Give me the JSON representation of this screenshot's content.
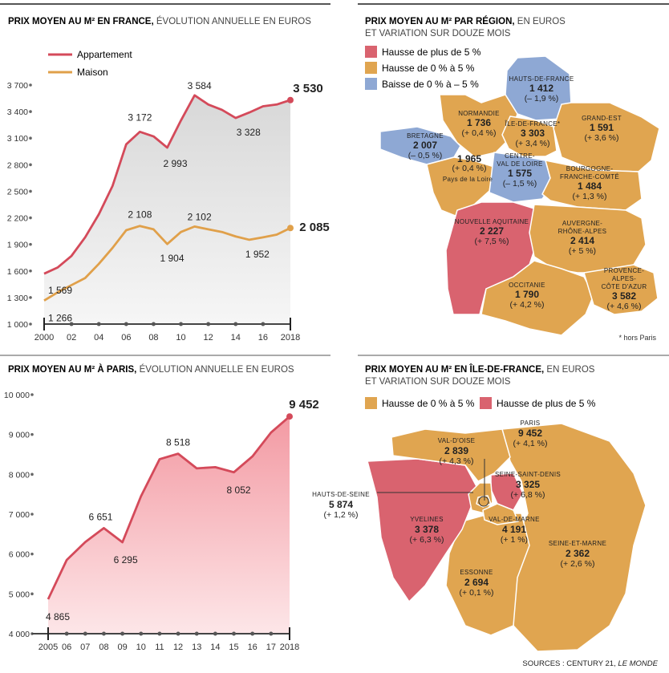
{
  "colors": {
    "appartement": "#d44a5a",
    "maison": "#e0a04a",
    "hausse_plus_5": "#d9636f",
    "hausse_0_5": "#e0a550",
    "baisse_0_5": "#8ea8d4",
    "border_map": "#ffffff",
    "axis": "#444444",
    "area_fill": "#e8e8e8",
    "paris_area": "#f4a0a8"
  },
  "chart_data": [
    {
      "type": "line",
      "id": "france",
      "title_bold": "PRIX MOYEN AU M² EN FRANCE,",
      "title_rest": " ÉVOLUTION ANNUELLE EN EUROS",
      "x": [
        2000,
        2001,
        2002,
        2003,
        2004,
        2005,
        2006,
        2007,
        2008,
        2009,
        2010,
        2011,
        2012,
        2013,
        2014,
        2015,
        2016,
        2017,
        2018
      ],
      "xticks": [
        "2000",
        "02",
        "04",
        "06",
        "08",
        "10",
        "12",
        "14",
        "16",
        "2018"
      ],
      "xtick_values": [
        2000,
        2002,
        2004,
        2006,
        2008,
        2010,
        2012,
        2014,
        2016,
        2018
      ],
      "yticks": [
        "1 000",
        "1 300",
        "1 600",
        "1 900",
        "2 200",
        "2 500",
        "2 800",
        "3 100",
        "3 400",
        "3 700"
      ],
      "ytick_values": [
        1000,
        1300,
        1600,
        1900,
        2200,
        2500,
        2800,
        3100,
        3400,
        3700
      ],
      "ylim": [
        1000,
        3700
      ],
      "series": [
        {
          "name": "Appartement",
          "key": "appartement",
          "values": [
            1569,
            1640,
            1770,
            1980,
            2240,
            2560,
            3030,
            3172,
            3120,
            2993,
            3300,
            3584,
            3480,
            3420,
            3328,
            3390,
            3460,
            3480,
            3530
          ]
        },
        {
          "name": "Maison",
          "key": "maison",
          "values": [
            1266,
            1360,
            1440,
            1520,
            1680,
            1860,
            2060,
            2108,
            2070,
            1904,
            2040,
            2102,
            2070,
            2040,
            1990,
            1952,
            1980,
            2010,
            2085
          ]
        }
      ],
      "labels": [
        {
          "series": 0,
          "index": 0,
          "text": "1 569"
        },
        {
          "series": 0,
          "index": 7,
          "text": "3 172"
        },
        {
          "series": 0,
          "index": 9,
          "text": "2 993"
        },
        {
          "series": 0,
          "index": 11,
          "text": "3 584"
        },
        {
          "series": 0,
          "index": 14,
          "text": "3 328"
        },
        {
          "series": 0,
          "index": 18,
          "text": "3 530",
          "bold": true
        },
        {
          "series": 1,
          "index": 0,
          "text": "1 266"
        },
        {
          "series": 1,
          "index": 7,
          "text": "2 108"
        },
        {
          "series": 1,
          "index": 9,
          "text": "1 904"
        },
        {
          "series": 1,
          "index": 11,
          "text": "2 102"
        },
        {
          "series": 1,
          "index": 15,
          "text": "1 952"
        },
        {
          "series": 1,
          "index": 18,
          "text": "2 085",
          "bold": true
        }
      ]
    },
    {
      "type": "area",
      "id": "paris",
      "title_bold": "PRIX MOYEN AU M² À PARIS,",
      "title_rest": " ÉVOLUTION ANNUELLE EN EUROS",
      "x": [
        2005,
        2006,
        2007,
        2008,
        2009,
        2010,
        2011,
        2012,
        2013,
        2014,
        2015,
        2016,
        2017,
        2018
      ],
      "xticks": [
        "2005",
        "06",
        "07",
        "08",
        "09",
        "10",
        "11",
        "12",
        "13",
        "14",
        "15",
        "16",
        "17",
        "2018"
      ],
      "yticks": [
        "4 000",
        "5 000",
        "6 000",
        "7 000",
        "8 000",
        "9 000",
        "10 000"
      ],
      "ytick_values": [
        4000,
        5000,
        6000,
        7000,
        8000,
        9000,
        10000
      ],
      "ylim": [
        4000,
        10000
      ],
      "values": [
        4865,
        5850,
        6300,
        6651,
        6295,
        7450,
        8380,
        8518,
        8150,
        8180,
        8052,
        8450,
        9050,
        9452
      ],
      "labels": [
        {
          "index": 0,
          "text": "4 865"
        },
        {
          "index": 3,
          "text": "6 651"
        },
        {
          "index": 4,
          "text": "6 295"
        },
        {
          "index": 7,
          "text": "8 518"
        },
        {
          "index": 10,
          "text": "8 052"
        },
        {
          "index": 13,
          "text": "9 452",
          "bold": true
        }
      ]
    }
  ],
  "france_map": {
    "title_bold": "PRIX MOYEN AU M² PAR RÉGION,",
    "title_rest": " EN EUROS",
    "title_line2": "ET VARIATION SUR DOUZE MOIS",
    "legend": [
      {
        "label": "Hausse de plus de 5 %",
        "color_key": "hausse_plus_5"
      },
      {
        "label": "Hausse de 0 % à 5 %",
        "color_key": "hausse_0_5"
      },
      {
        "label": "Baisse de 0 % à – 5 %",
        "color_key": "baisse_0_5"
      }
    ],
    "regions": [
      {
        "name": "Hauts-de-France",
        "price": "1 412",
        "change": "(– 1,9 %)"
      },
      {
        "name": "Normandie",
        "price": "1 736",
        "change": "(+ 0,4 %)"
      },
      {
        "name": "Île-de-France*",
        "price": "3 303",
        "change": "(+ 3,4 %)"
      },
      {
        "name": "Grand-Est",
        "price": "1 591",
        "change": "(+ 3,6 %)"
      },
      {
        "name": "Bretagne",
        "price": "2 007",
        "change": "(– 0,5 %)"
      },
      {
        "name": "Pays de la Loire",
        "price": "1 965",
        "change": "(+ 0,4 %)"
      },
      {
        "name": "Centre-Val de Loire",
        "price": "1 575",
        "change": "(– 1,5 %)"
      },
      {
        "name": "Bourgogne-Franche-Comté",
        "price": "1 484",
        "change": "(+ 1,3 %)"
      },
      {
        "name": "Nouvelle Aquitaine",
        "price": "2 227",
        "change": "(+ 7,5 %)"
      },
      {
        "name": "Auvergne-Rhône-Alpes",
        "price": "2 414",
        "change": "(+ 5 %)"
      },
      {
        "name": "Occitanie",
        "price": "1 790",
        "change": "(+ 4,2 %)"
      },
      {
        "name": "Provence-Alpes-Côte d'Azur",
        "price": "3 582",
        "change": "(+ 4,6 %)"
      }
    ],
    "footnote": "* hors Paris"
  },
  "idf_map": {
    "title_bold": "PRIX MOYEN AU M² EN ÎLE-DE-FRANCE,",
    "title_rest": " EN EUROS",
    "title_line2": "ET VARIATION SUR DOUZE MOIS",
    "legend": [
      {
        "label": "Hausse de 0 % à 5 %",
        "color_key": "hausse_0_5"
      },
      {
        "label": "Hausse de plus de 5 %",
        "color_key": "hausse_plus_5"
      }
    ],
    "departments": [
      {
        "name": "Paris",
        "price": "9 452",
        "change": "(+ 4,1 %)"
      },
      {
        "name": "Val-d'Oise",
        "price": "2 839",
        "change": "(+ 4,3 %)"
      },
      {
        "name": "Seine-Saint-Denis",
        "price": "3 325",
        "change": "(+ 6,8 %)"
      },
      {
        "name": "Hauts-de-Seine",
        "price": "5 874",
        "change": "(+ 1,2 %)"
      },
      {
        "name": "Yvelines",
        "price": "3 378",
        "change": "(+ 6,3 %)"
      },
      {
        "name": "Val-de-Marne",
        "price": "4 191",
        "change": "(+ 1 %)"
      },
      {
        "name": "Seine-et-Marne",
        "price": "2 362",
        "change": "(+ 2,6 %)"
      },
      {
        "name": "Essonne",
        "price": "2 694",
        "change": "(+ 0,1 %)"
      }
    ]
  },
  "sources": {
    "prefix": "SOURCES : CENTURY 21, ",
    "italic": "LE MONDE"
  }
}
